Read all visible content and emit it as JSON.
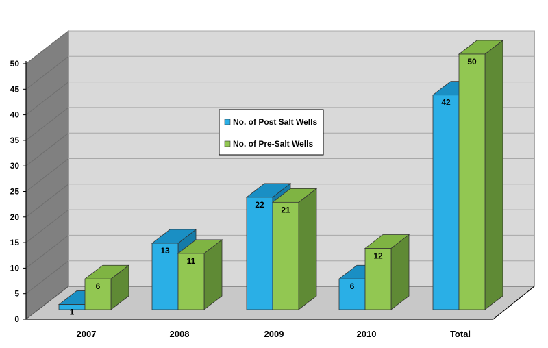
{
  "chart_data": {
    "type": "bar",
    "title": "",
    "xlabel": "",
    "ylabel": "",
    "categories": [
      "2007",
      "2008",
      "2009",
      "2010",
      "Total"
    ],
    "series": [
      {
        "name": "No. of Post Salt Wells",
        "values": [
          1,
          13,
          22,
          6,
          42
        ]
      },
      {
        "name": "No. of Pre-Salt Wells",
        "values": [
          6,
          11,
          21,
          12,
          50
        ]
      }
    ],
    "ylim": [
      0,
      50
    ],
    "yticks": [
      "0",
      "5",
      "10",
      "15",
      "20",
      "25",
      "30",
      "35",
      "40",
      "45",
      "50"
    ],
    "data_labels": true,
    "grid": true,
    "legend": "center"
  },
  "colors": {
    "series": [
      {
        "front": "#2aafe6",
        "top": "#1a8fc4",
        "side": "#157ba8"
      },
      {
        "front": "#92c752",
        "top": "#7fb443",
        "side": "#5f8a35"
      }
    ],
    "back_wall": "#d9d9d9",
    "side_wall": "#808080",
    "floor": "#c8c8c8",
    "gridline": "#a8a8a8",
    "axis": "#000000"
  }
}
